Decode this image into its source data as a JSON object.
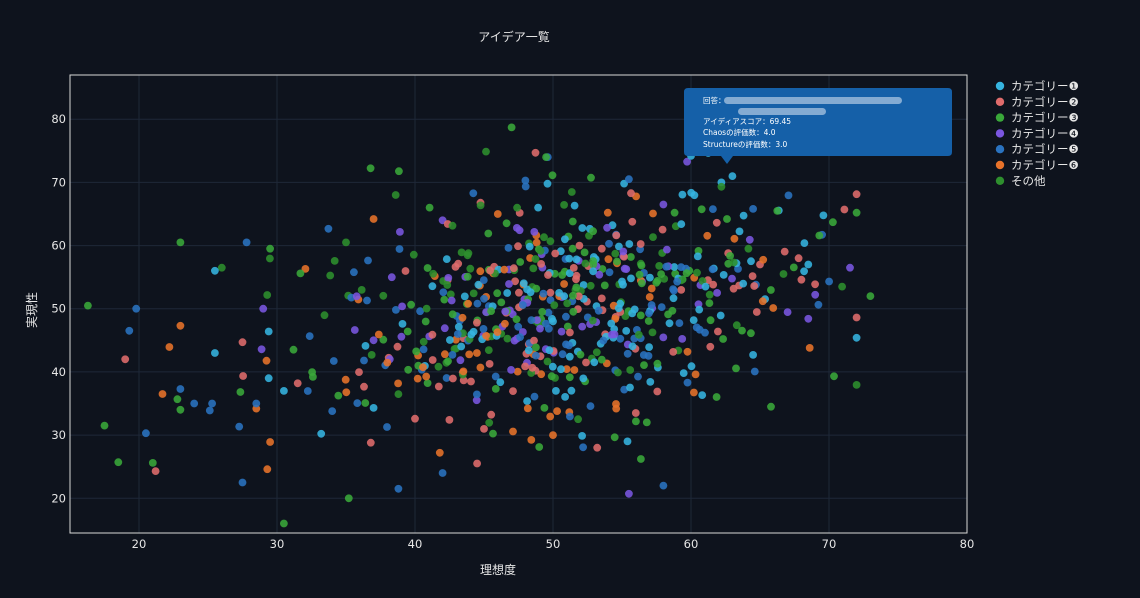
{
  "colors": {
    "background": "#0e131d",
    "grid": "#1f2838",
    "axis_frame": "#d8d8d8",
    "tooltip_bg": "#1560a8",
    "cat1": "#36b4e0",
    "cat2": "#e06c6c",
    "cat3": "#3aa83a",
    "cat4": "#7a56e0",
    "cat5": "#2a73c0",
    "cat6": "#e8732a",
    "other": "#2e8f2e"
  },
  "chart_data": {
    "type": "scatter",
    "title": "アイデア一覧",
    "xlabel": "理想度",
    "ylabel": "実現性",
    "xlim": [
      15,
      80
    ],
    "ylim": [
      14.5,
      87
    ],
    "x_ticks": [
      20,
      30,
      40,
      50,
      60,
      70,
      80
    ],
    "y_ticks": [
      20,
      30,
      40,
      50,
      60,
      70,
      80
    ],
    "grid": true,
    "legend_position": "right",
    "series": [
      {
        "name": "カテゴリー❶",
        "color": "#36b4e0",
        "n": 110,
        "mean_x": 54,
        "sd_x": 7,
        "mean_y": 52,
        "sd_y": 8,
        "points": [
          [
            25.5,
            56.0
          ],
          [
            25.5,
            43.0
          ],
          [
            29.4,
            39.0
          ],
          [
            29.4,
            46.4
          ],
          [
            33.2,
            30.2
          ],
          [
            60.0,
            74.2
          ],
          [
            62.2,
            70.0
          ],
          [
            63.0,
            71.0
          ],
          [
            55.4,
            29.0
          ],
          [
            64.5,
            42.7
          ],
          [
            68.5,
            57.0
          ],
          [
            49.6,
            69.8
          ],
          [
            37.0,
            34.3
          ],
          [
            30.5,
            37.0
          ]
        ]
      },
      {
        "name": "カテゴリー❷",
        "color": "#e06c6c",
        "n": 90,
        "mean_x": 52,
        "sd_x": 9,
        "mean_y": 50,
        "sd_y": 8,
        "points": [
          [
            19.0,
            42.0
          ],
          [
            21.2,
            24.3
          ],
          [
            27.5,
            44.7
          ],
          [
            31.5,
            38.2
          ],
          [
            36.8,
            28.8
          ],
          [
            40.0,
            32.6
          ],
          [
            44.5,
            25.5
          ],
          [
            53.2,
            28.0
          ],
          [
            67.8,
            58.0
          ],
          [
            65.0,
            57.0
          ],
          [
            56.0,
            33.5
          ]
        ]
      },
      {
        "name": "カテゴリー❸",
        "color": "#3aa83a",
        "n": 110,
        "mean_x": 50,
        "sd_x": 9,
        "mean_y": 50,
        "sd_y": 9,
        "points": [
          [
            16.3,
            50.5
          ],
          [
            17.5,
            31.5
          ],
          [
            18.5,
            25.7
          ],
          [
            21.0,
            25.6
          ],
          [
            23.0,
            60.5
          ],
          [
            23.0,
            34.0
          ],
          [
            29.5,
            59.5
          ],
          [
            30.5,
            16.0
          ],
          [
            35.2,
            20.0
          ],
          [
            47.0,
            78.7
          ],
          [
            49.5,
            74.0
          ],
          [
            73.0,
            52.0
          ],
          [
            69.3,
            61.6
          ],
          [
            65.8,
            34.5
          ],
          [
            56.8,
            32.0
          ]
        ]
      },
      {
        "name": "カテゴリー❹",
        "color": "#7a56e0",
        "n": 70,
        "mean_x": 52,
        "sd_x": 8,
        "mean_y": 52,
        "sd_y": 8,
        "points": [
          [
            29.0,
            50.0
          ],
          [
            55.5,
            20.7
          ],
          [
            58.0,
            66.5
          ],
          [
            68.5,
            48.4
          ],
          [
            69.0,
            52.2
          ],
          [
            42.0,
            64.0
          ],
          [
            37.0,
            45.0
          ]
        ]
      },
      {
        "name": "カテゴリー❺",
        "color": "#2a73c0",
        "n": 100,
        "mean_x": 50,
        "sd_x": 10,
        "mean_y": 48,
        "sd_y": 9,
        "points": [
          [
            19.3,
            46.5
          ],
          [
            20.5,
            30.3
          ],
          [
            19.8,
            50.0
          ],
          [
            23.0,
            37.3
          ],
          [
            24.0,
            35.0
          ],
          [
            25.3,
            35.0
          ],
          [
            27.5,
            22.5
          ],
          [
            27.8,
            60.5
          ],
          [
            28.5,
            35.0
          ],
          [
            34.0,
            33.8
          ],
          [
            38.8,
            21.5
          ],
          [
            42.0,
            24.0
          ],
          [
            48.0,
            70.3
          ],
          [
            55.5,
            70.5
          ],
          [
            58.0,
            22.0
          ],
          [
            64.5,
            65.8
          ],
          [
            69.5,
            61.7
          ]
        ]
      },
      {
        "name": "カテゴリー❻",
        "color": "#e8732a",
        "n": 70,
        "mean_x": 49,
        "sd_x": 9,
        "mean_y": 47,
        "sd_y": 9,
        "points": [
          [
            21.7,
            36.5
          ],
          [
            23.0,
            47.3
          ],
          [
            28.5,
            34.2
          ],
          [
            29.3,
            24.6
          ],
          [
            29.5,
            28.9
          ],
          [
            37.0,
            64.2
          ],
          [
            41.8,
            27.2
          ],
          [
            50.0,
            30.0
          ],
          [
            50.3,
            33.8
          ],
          [
            68.6,
            43.8
          ],
          [
            65.2,
            51.2
          ],
          [
            46.0,
            65.0
          ]
        ]
      },
      {
        "name": "その他",
        "color": "#2e8f2e",
        "n": 90,
        "mean_x": 50,
        "sd_x": 9,
        "mean_y": 51,
        "sd_y": 9,
        "points": [
          [
            26.0,
            56.5
          ],
          [
            35.0,
            60.5
          ],
          [
            38.6,
            68.0
          ],
          [
            47.4,
            66.0
          ],
          [
            62.2,
            69.3
          ],
          [
            66.7,
            55.5
          ]
        ]
      }
    ],
    "tooltip": {
      "anchor_series": 0,
      "anchor_point": [
        63.0,
        71.0
      ],
      "lines": [
        "回答：",
        "アイディアスコア：69.45",
        "Chaosの評価数：4.0",
        "Structureの評価数：3.0"
      ],
      "blurred_answer": true
    }
  }
}
